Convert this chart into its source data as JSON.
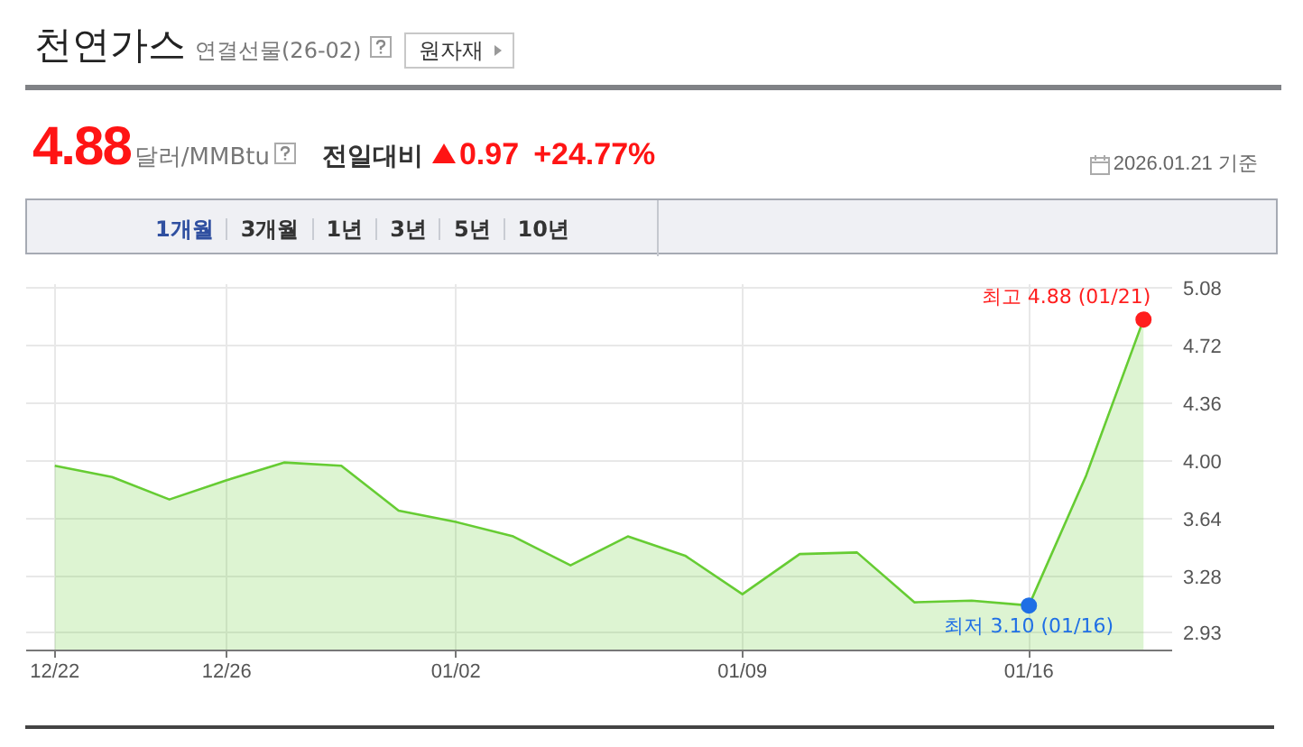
{
  "chart_data": {
    "type": "area",
    "title": "천연가스",
    "subtitle": "연결선물(26-02)",
    "categories": [
      "12/22",
      null,
      null,
      "12/26",
      null,
      null,
      null,
      "01/02",
      null,
      null,
      null,
      null,
      "01/09",
      null,
      null,
      null,
      null,
      "01/16",
      null,
      null
    ],
    "series": [
      {
        "color": "#66cc33",
        "values": [
          3.97,
          3.9,
          3.76,
          3.88,
          3.99,
          3.97,
          3.69,
          3.62,
          3.53,
          3.35,
          3.53,
          3.41,
          3.17,
          3.42,
          3.43,
          3.12,
          3.13,
          3.1,
          3.91,
          4.88
        ]
      },
      {
        "type": "scatter",
        "marker": "circle",
        "values": [
          null,
          null,
          null,
          null,
          null,
          null,
          null,
          null,
          null,
          null,
          null,
          null,
          null,
          null,
          null,
          null,
          null,
          3.1,
          null,
          4.88
        ],
        "colors": [
          null,
          null,
          null,
          null,
          null,
          null,
          null,
          null,
          null,
          null,
          null,
          null,
          null,
          null,
          null,
          null,
          null,
          "#1f6fe5",
          null,
          "#ff1e1e"
        ]
      }
    ],
    "ylim": [
      2.82,
      5.1
    ],
    "yticks": [
      2.93,
      3.28,
      3.64,
      {
        "value": 4,
        "label": "4.00"
      },
      4.36,
      4.72,
      5.08
    ],
    "grid": true,
    "annotations": [
      "원자재",
      "4.88",
      "달러/MMBtu",
      "전일대비",
      "0.97",
      "+24.77%",
      "2026.01.21 기준",
      "1개월",
      "3개월",
      "1년",
      "3년",
      "5년",
      "10년",
      "최고 4.88 (01/21)",
      "최저 3.10 (01/16)"
    ]
  }
}
